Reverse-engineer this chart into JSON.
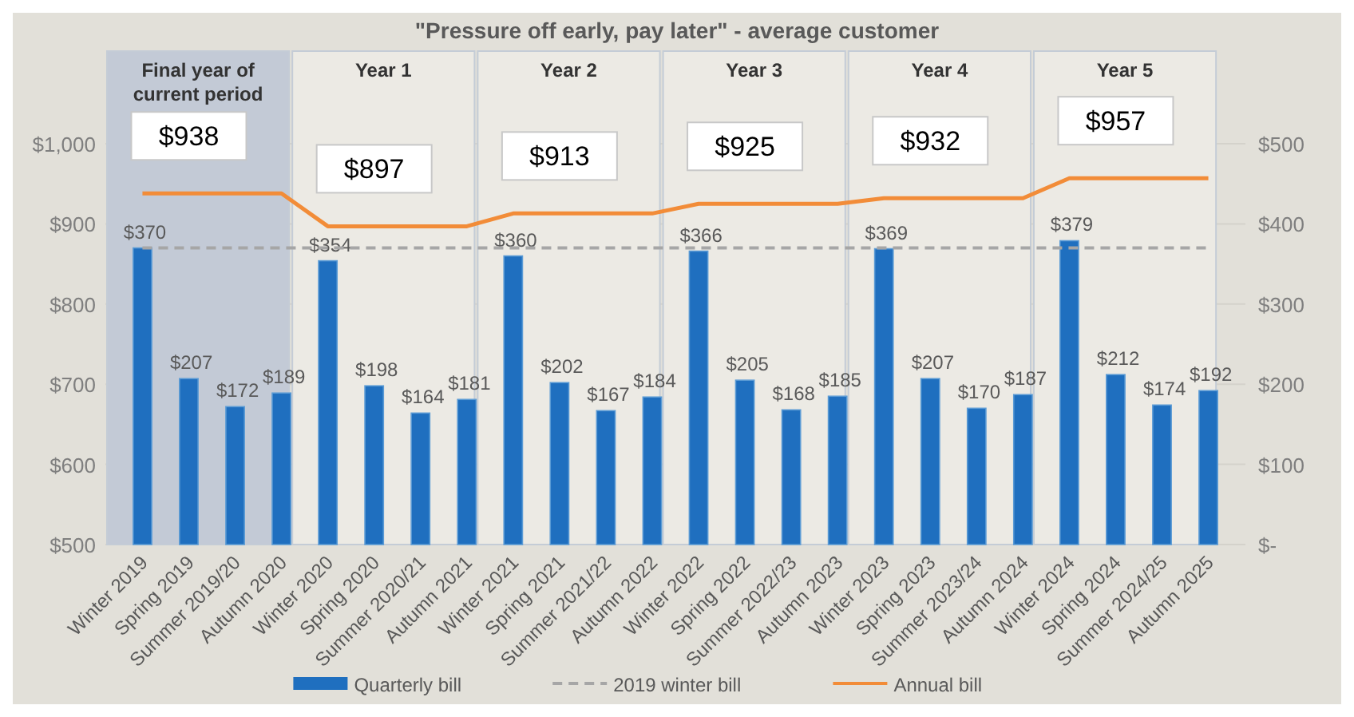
{
  "chart_data": {
    "type": "bar",
    "title": "\"Pressure off early, pay later\" - average customer",
    "categories": [
      "Winter 2019",
      "Spring 2019",
      "Summer 2019/20",
      "Autumn 2020",
      "Winter 2020",
      "Spring 2020",
      "Summer 2020/21",
      "Autumn 2021",
      "Winter 2021",
      "Spring 2021",
      "Summer 2021/22",
      "Autumn 2022",
      "Winter 2022",
      "Spring 2022",
      "Summer 2022/23",
      "Autumn 2023",
      "Winter 2023",
      "Spring 2023",
      "Summer 2023/24",
      "Autumn 2024",
      "Winter 2024",
      "Spring 2024",
      "Summer 2024/25",
      "Autumn 2025"
    ],
    "series": [
      {
        "name": "Quarterly bill",
        "axis": "y2",
        "color": "#1f6fbf",
        "values": [
          370,
          207,
          172,
          189,
          354,
          198,
          164,
          181,
          360,
          202,
          167,
          184,
          366,
          205,
          168,
          185,
          369,
          207,
          170,
          187,
          379,
          212,
          174,
          192
        ],
        "value_labels": [
          "$370",
          "$207",
          "$172",
          "$189",
          "$354",
          "$198",
          "$164",
          "$181",
          "$360",
          "$202",
          "$167",
          "$184",
          "$366",
          "$205",
          "$168",
          "$185",
          "$369",
          "$207",
          "$170",
          "$187",
          "$379",
          "$212",
          "$174",
          "$192"
        ]
      },
      {
        "name": "Annual bill",
        "type": "line",
        "axis": "y",
        "color": "#f28c38",
        "values": [
          938,
          938,
          938,
          938,
          897,
          897,
          897,
          897,
          913,
          913,
          913,
          913,
          925,
          925,
          925,
          925,
          932,
          932,
          932,
          932,
          957,
          957,
          957,
          957
        ],
        "value_labels": [
          null,
          "$938",
          null,
          null,
          null,
          "$897",
          null,
          null,
          null,
          "$913",
          null,
          null,
          null,
          "$925",
          null,
          null,
          null,
          "$932",
          null,
          null,
          null,
          "$957",
          null,
          null
        ]
      }
    ],
    "ylim": [
      500,
      1000
    ],
    "yticks": [
      {
        "value": 500,
        "label": "$500"
      },
      {
        "value": 600,
        "label": "$600"
      },
      {
        "value": 700,
        "label": "$700"
      },
      {
        "value": 800,
        "label": "$800"
      },
      {
        "value": 900,
        "label": "$900"
      },
      {
        "value": 1000,
        "label": "$1,000"
      }
    ],
    "y2lim": [
      0,
      500
    ],
    "y2ticks": [
      {
        "value": 0,
        "label": "$-"
      },
      {
        "value": 100,
        "label": "$100"
      },
      {
        "value": 200,
        "label": "$200"
      },
      {
        "value": 300,
        "label": "$300"
      },
      {
        "value": 400,
        "label": "$400"
      },
      {
        "value": 500,
        "label": "$500"
      }
    ],
    "ref_lines": [
      {
        "axis": "y2",
        "value": 370,
        "label": "2019 winter bill",
        "color": "#a6a6a6",
        "line_style": "dashed"
      }
    ],
    "annotations": [
      "Final year of current period",
      "Year 1",
      "Year 2",
      "Year 3",
      "Year 4",
      "Year 5"
    ],
    "grid": "y",
    "legend": "bottom"
  }
}
